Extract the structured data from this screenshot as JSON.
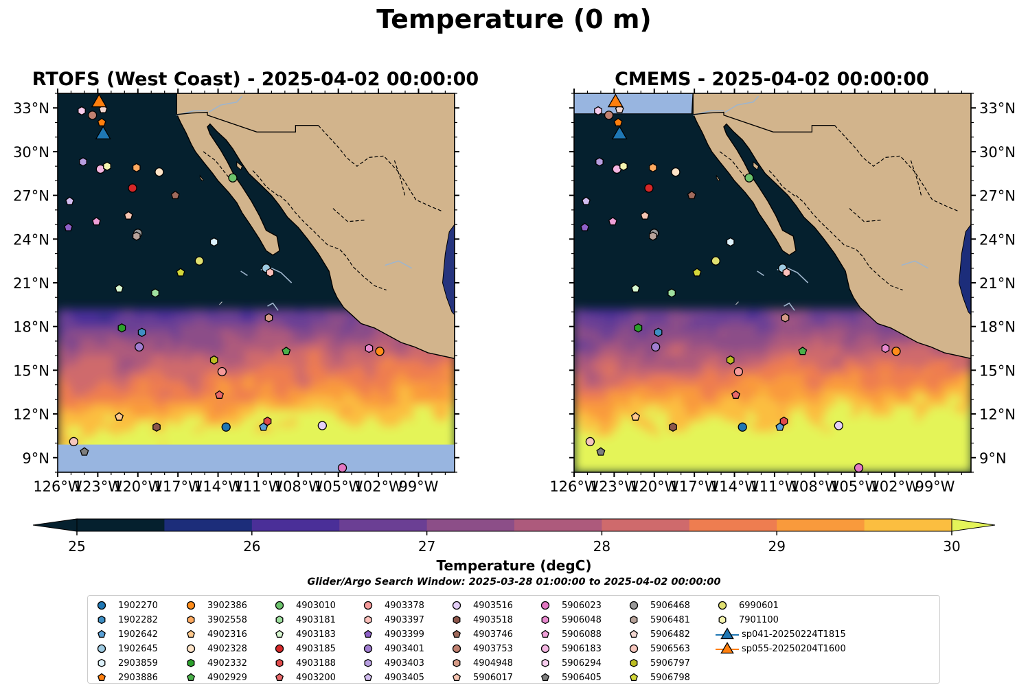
{
  "figure": {
    "suptitle": "Temperature (0 m)",
    "colorbar_label": "Temperature (degC)",
    "search_window": "Glider/Argo Search Window: 2025-03-28 01:00:00 to 2025-04-02 00:00:00"
  },
  "panels": [
    {
      "title": "RTOFS (West Coast) - 2025-04-02 00:00:00",
      "model": "RTOFS"
    },
    {
      "title": "CMEMS - 2025-04-02 00:00:00",
      "model": "CMEMS"
    }
  ],
  "colors": {
    "land": "#d2b48c",
    "nodata": "#98b5e0",
    "rivers": "#9fb5cc",
    "colorbar": [
      "#05202e",
      "#1c2d7a",
      "#4a2f98",
      "#6b3f94",
      "#8c4e88",
      "#ad5a7c",
      "#cf6a6c",
      "#ee7d50",
      "#f99a3c",
      "#fbbe40"
    ],
    "cb_under": "#05202e",
    "cb_over": "#e4f459"
  },
  "chart_data": {
    "type": "map",
    "map_extent": {
      "lon": [
        -126,
        -96.3
      ],
      "lat": [
        8,
        34
      ]
    },
    "xticks": [
      "126°W",
      "123°W",
      "120°W",
      "117°W",
      "114°W",
      "111°W",
      "108°W",
      "105°W",
      "102°W",
      "99°W"
    ],
    "yticks": [
      "9°N",
      "12°N",
      "15°N",
      "18°N",
      "21°N",
      "24°N",
      "27°N",
      "30°N",
      "33°N"
    ],
    "colorbar": {
      "min": 25,
      "max": 30,
      "step": 0.5,
      "extend": "both",
      "ticks": [
        "25",
        "26",
        "27",
        "28",
        "29",
        "30"
      ]
    },
    "rtofs_data_south_limit_lat": 9.9,
    "platforms": [
      {
        "id": "1902270",
        "marker": "circle",
        "color": "#1f77b4",
        "lon": -113.4,
        "lat": 11.1
      },
      {
        "id": "1902282",
        "marker": "hexagon",
        "color": "#3f8fc4",
        "lon": -119.7,
        "lat": 17.6
      },
      {
        "id": "1902642",
        "marker": "pentagon",
        "color": "#5aa0d6",
        "lon": -110.6,
        "lat": 11.1
      },
      {
        "id": "1902645",
        "marker": "circle",
        "color": "#9ecae1",
        "lon": -110.4,
        "lat": 22.0
      },
      {
        "id": "2903859",
        "marker": "hexagon",
        "color": "#ddf1fb",
        "lon": -114.3,
        "lat": 23.8
      },
      {
        "id": "2903886",
        "marker": "pentagon",
        "color": "#ff7f0e",
        "lon": -122.7,
        "lat": 32.0
      },
      {
        "id": "3902386",
        "marker": "circle",
        "color": "#ff8c1a",
        "lon": -101.9,
        "lat": 16.3
      },
      {
        "id": "3902558",
        "marker": "hexagon",
        "color": "#ffaa60",
        "lon": -120.1,
        "lat": 28.9
      },
      {
        "id": "4902316",
        "marker": "pentagon",
        "color": "#ffc88c",
        "lon": -121.4,
        "lat": 11.8
      },
      {
        "id": "4902328",
        "marker": "circle",
        "color": "#ffe4c8",
        "lon": -118.4,
        "lat": 28.6
      },
      {
        "id": "4902332",
        "marker": "hexagon",
        "color": "#2ca02c",
        "lon": -121.2,
        "lat": 17.9
      },
      {
        "id": "4902929",
        "marker": "pentagon",
        "color": "#4ab04a",
        "lon": -108.9,
        "lat": 16.3
      },
      {
        "id": "4903010",
        "marker": "circle",
        "color": "#6cc36c",
        "lon": -112.9,
        "lat": 28.2
      },
      {
        "id": "4903181",
        "marker": "hexagon",
        "color": "#9fe09f",
        "lon": -118.7,
        "lat": 20.3
      },
      {
        "id": "4903183",
        "marker": "pentagon",
        "color": "#d7f7d0",
        "lon": -121.4,
        "lat": 20.6
      },
      {
        "id": "4903185",
        "marker": "circle",
        "color": "#d62728",
        "lon": -120.4,
        "lat": 27.5
      },
      {
        "id": "4903188",
        "marker": "hexagon",
        "color": "#e04a4a",
        "lon": -110.3,
        "lat": 11.5
      },
      {
        "id": "4903200",
        "marker": "pentagon",
        "color": "#e8686a",
        "lon": -113.9,
        "lat": 13.3
      },
      {
        "id": "4903378",
        "marker": "circle",
        "color": "#f59a9a",
        "lon": -113.7,
        "lat": 14.9
      },
      {
        "id": "4903397",
        "marker": "hexagon",
        "color": "#fcc0bb",
        "lon": -110.1,
        "lat": 21.7
      },
      {
        "id": "4903399",
        "marker": "pentagon",
        "color": "#8e60c8",
        "lon": -125.2,
        "lat": 24.8
      },
      {
        "id": "4903401",
        "marker": "circle",
        "color": "#a07dd0",
        "lon": -119.9,
        "lat": 16.6
      },
      {
        "id": "4903403",
        "marker": "hexagon",
        "color": "#b79ee0",
        "lon": -124.1,
        "lat": 29.3
      },
      {
        "id": "4903405",
        "marker": "pentagon",
        "color": "#d2bdf0",
        "lon": -125.1,
        "lat": 26.6
      },
      {
        "id": "4903516",
        "marker": "circle",
        "color": "#e4cff8",
        "lon": -106.2,
        "lat": 11.2
      },
      {
        "id": "4903518",
        "marker": "hexagon",
        "color": "#8c564b",
        "lon": -118.6,
        "lat": 11.1
      },
      {
        "id": "4903746",
        "marker": "pentagon",
        "color": "#a06a5c",
        "lon": -117.2,
        "lat": 27.0
      },
      {
        "id": "4903753",
        "marker": "circle",
        "color": "#c08070",
        "lon": -123.4,
        "lat": 32.5
      },
      {
        "id": "4904948",
        "marker": "hexagon",
        "color": "#d59a86",
        "lon": -110.2,
        "lat": 18.6
      },
      {
        "id": "5906017",
        "marker": "pentagon",
        "color": "#f7c5b2",
        "lon": -120.7,
        "lat": 25.6
      },
      {
        "id": "5906023",
        "marker": "circle",
        "color": "#e377c2",
        "lon": -104.7,
        "lat": 8.3
      },
      {
        "id": "5906048",
        "marker": "hexagon",
        "color": "#e889cf",
        "lon": -102.7,
        "lat": 16.5
      },
      {
        "id": "5906088",
        "marker": "pentagon",
        "color": "#ef9fd7",
        "lon": -123.1,
        "lat": 25.2
      },
      {
        "id": "5906183",
        "marker": "circle",
        "color": "#f4b6e2",
        "lon": -122.8,
        "lat": 28.8
      },
      {
        "id": "5906294",
        "marker": "hexagon",
        "color": "#f7cced",
        "lon": -124.2,
        "lat": 32.8
      },
      {
        "id": "5906405",
        "marker": "pentagon",
        "color": "#7f7f7f",
        "lon": -124.0,
        "lat": 9.4
      },
      {
        "id": "5906468",
        "marker": "circle",
        "color": "#999999",
        "lon": -120.0,
        "lat": 24.4
      },
      {
        "id": "5906481",
        "marker": "hexagon",
        "color": "#b8a39a",
        "lon": -120.1,
        "lat": 24.2
      },
      {
        "id": "5906482",
        "marker": "pentagon",
        "color": "#f2d6d0",
        "lon": -122.6,
        "lat": 32.9
      },
      {
        "id": "5906563",
        "marker": "circle",
        "color": "#f6c6bd",
        "lon": -124.8,
        "lat": 10.1
      },
      {
        "id": "5906797",
        "marker": "hexagon",
        "color": "#bcbd22",
        "lon": -114.3,
        "lat": 15.7
      },
      {
        "id": "5906798",
        "marker": "pentagon",
        "color": "#d3d73a",
        "lon": -116.8,
        "lat": 21.7
      },
      {
        "id": "6990601",
        "marker": "circle",
        "color": "#e0e070",
        "lon": -115.4,
        "lat": 22.5
      },
      {
        "id": "7901100",
        "marker": "hexagon",
        "color": "#f4f4b0",
        "lon": -122.3,
        "lat": 29.0
      },
      {
        "id": "sp041-20250224T1815",
        "marker": "triangle",
        "color": "#1f77b4",
        "lon": -122.6,
        "lat": 31.3
      },
      {
        "id": "sp055-20250204T1600",
        "marker": "triangle",
        "color": "#ff7f0e",
        "lon": -122.9,
        "lat": 33.5
      }
    ]
  }
}
